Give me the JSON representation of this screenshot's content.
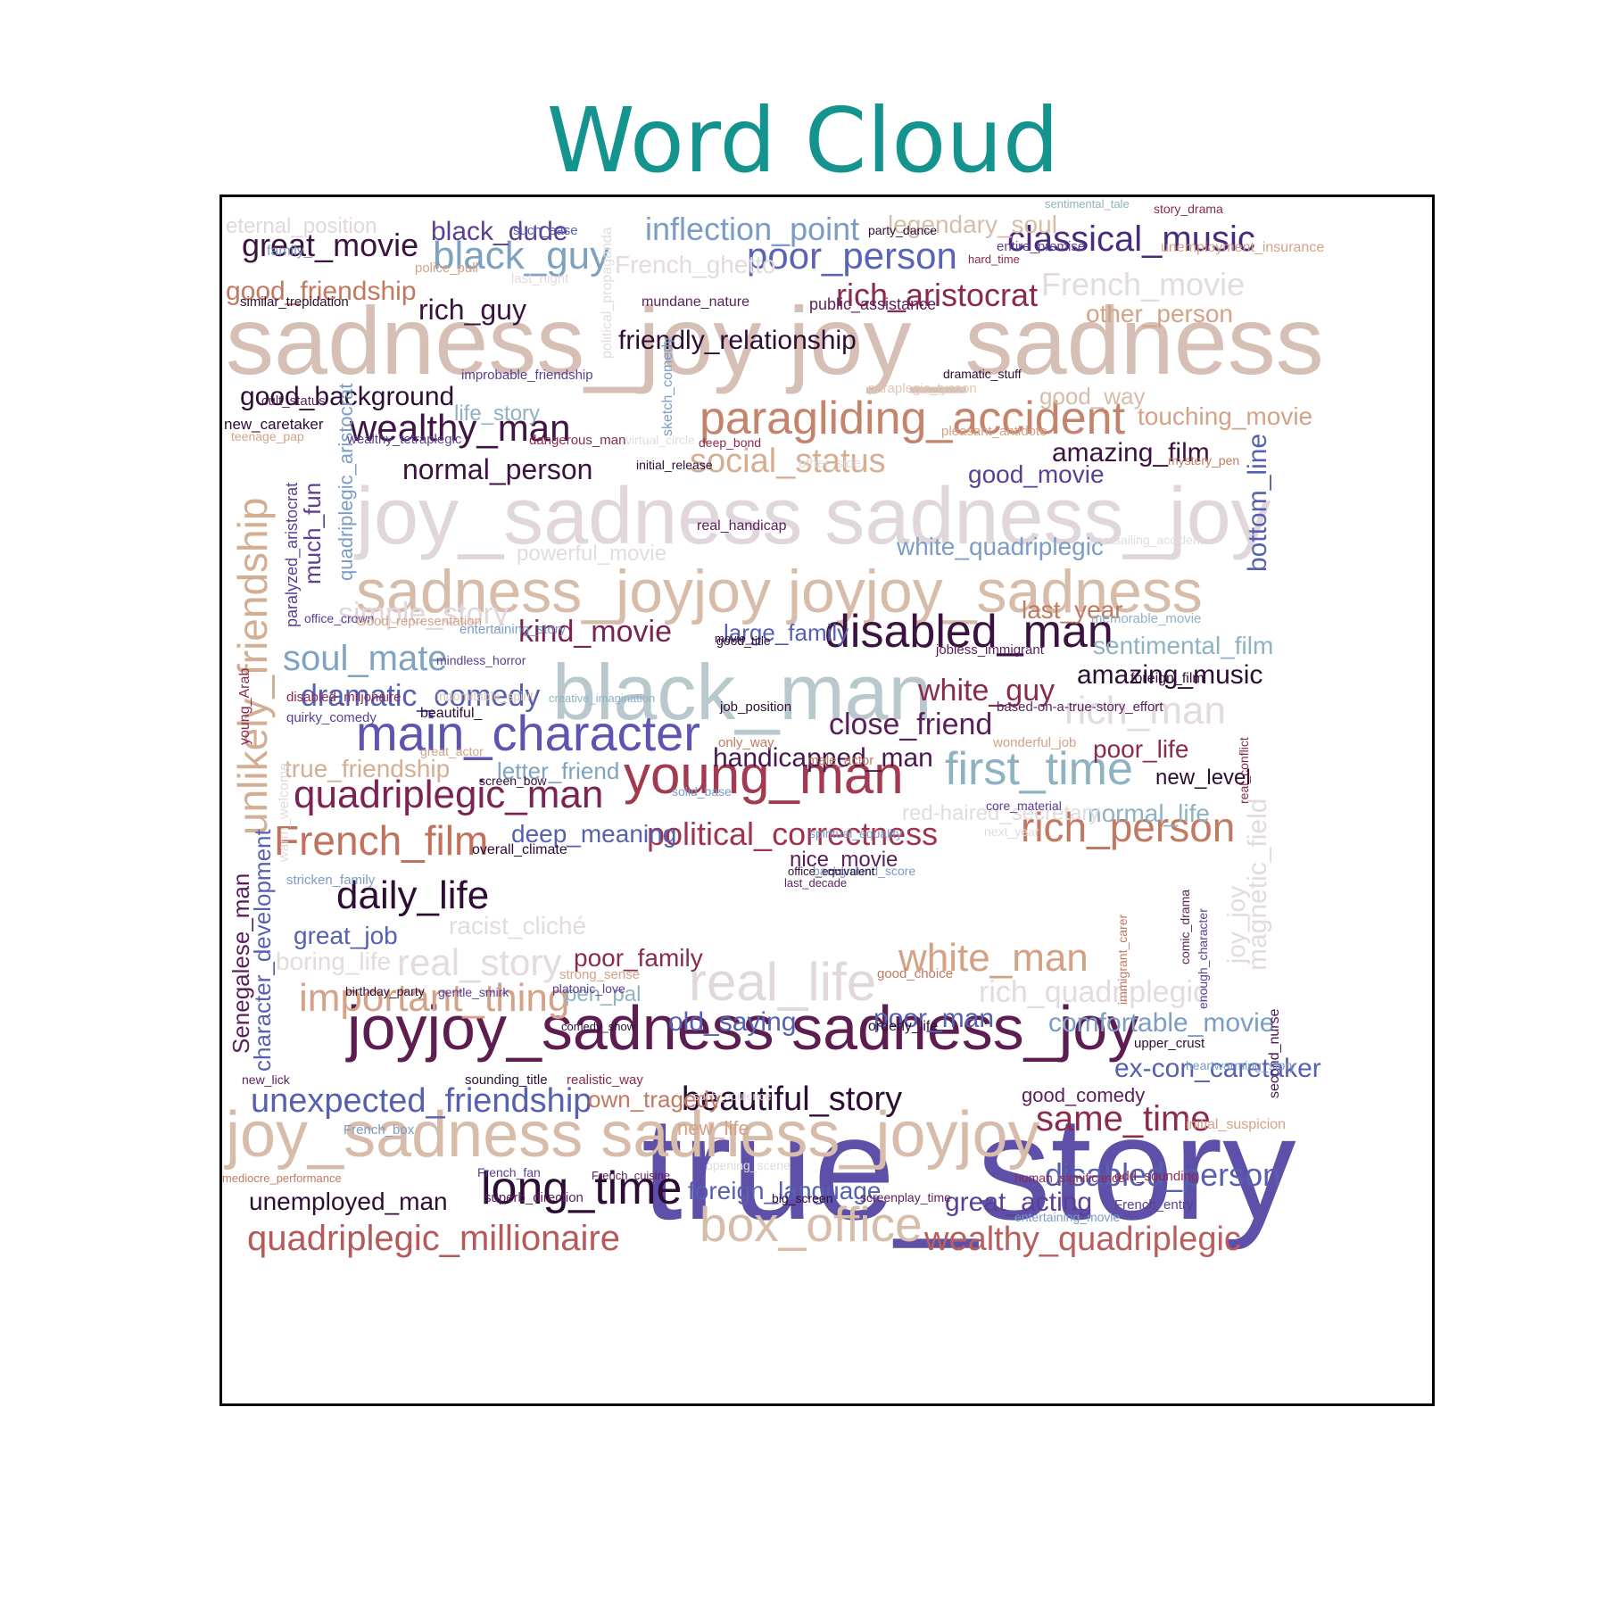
{
  "chart_data": {
    "type": "wordcloud",
    "title": "Word Cloud",
    "title_color": "#15948f",
    "words": [
      {
        "text": "true_story",
        "color": "#5e4fa9"
      },
      {
        "text": "sadness_joy joy_sadness",
        "color": "#d6bfb4"
      },
      {
        "text": "joy_sadness sadness_joy",
        "color": "#e0d6db"
      },
      {
        "text": "sadness_joyjoy joyjoy_sadness",
        "color": "#d7bca9"
      },
      {
        "text": "joyjoy_sadness sadness_joy",
        "color": "#5e1d50"
      },
      {
        "text": "joy_sadness sadness_joyjoy",
        "color": "#d6bca9"
      },
      {
        "text": "black_man",
        "color": "#b8c8cd"
      },
      {
        "text": "main_character",
        "color": "#5e55b1"
      },
      {
        "text": "young_man",
        "color": "#a33a4f"
      },
      {
        "text": "paragliding_accident",
        "color": "#c4836b"
      },
      {
        "text": "disabled_man",
        "color": "#3a1340"
      },
      {
        "text": "first_time",
        "color": "#8fb2c2"
      },
      {
        "text": "real_life",
        "color": "#e0d8dc"
      },
      {
        "text": "box_office",
        "color": "#d7bca9"
      },
      {
        "text": "long_time",
        "color": "#2c0c34"
      },
      {
        "text": "unlikely_friendship",
        "color": "#d4ae92"
      },
      {
        "text": "quadriplegic_man",
        "color": "#7b2353"
      },
      {
        "text": "French_film",
        "color": "#c1715c"
      },
      {
        "text": "rich_person",
        "color": "#c17a61"
      },
      {
        "text": "white_man",
        "color": "#d2a287"
      },
      {
        "text": "wealthy_man",
        "color": "#3f1545"
      },
      {
        "text": "quadriplegic_millionaire",
        "color": "#b45a5a"
      },
      {
        "text": "wealthy_quadriplegic",
        "color": "#b85e5c"
      },
      {
        "text": "important_thing",
        "color": "#d4a287"
      },
      {
        "text": "daily_life",
        "color": "#2e0d35"
      },
      {
        "text": "classical_music",
        "color": "#4a2a7a"
      },
      {
        "text": "poor_person",
        "color": "#5a64b4"
      },
      {
        "text": "black_guy",
        "color": "#7ca2c0"
      },
      {
        "text": "rich_aristocrat",
        "color": "#8b2a4f"
      },
      {
        "text": "great_movie",
        "color": "#3c1340"
      },
      {
        "text": "unexpected_friendship",
        "color": "#5660b0"
      },
      {
        "text": "beautiful_story",
        "color": "#2e0d35"
      },
      {
        "text": "real_story",
        "color": "#e3dbde"
      },
      {
        "text": "dramatic_comedy",
        "color": "#5660b0"
      },
      {
        "text": "soul_mate",
        "color": "#7fa3c0"
      },
      {
        "text": "political_correctness",
        "color": "#a0344f"
      },
      {
        "text": "social_status",
        "color": "#d6ae92"
      },
      {
        "text": "inflection_point",
        "color": "#7a9cc6"
      },
      {
        "text": "same_time",
        "color": "#8b2a4f"
      },
      {
        "text": "rich_man",
        "color": "#e3dbde"
      },
      {
        "text": "white_guy",
        "color": "#8b2a4f"
      },
      {
        "text": "normal_person",
        "color": "#3c1340"
      },
      {
        "text": "kind_movie",
        "color": "#7b2353"
      },
      {
        "text": "close_friend",
        "color": "#5a1f5a"
      },
      {
        "text": "handicapped_man",
        "color": "#4a1850"
      },
      {
        "text": "disabled_person",
        "color": "#5660b0"
      },
      {
        "text": "French_movie",
        "color": "#e3dbde"
      },
      {
        "text": "amazing_film",
        "color": "#3c1340"
      },
      {
        "text": "amazing_music",
        "color": "#2e0d35"
      },
      {
        "text": "good_background",
        "color": "#2e0d35"
      },
      {
        "text": "rich_guy",
        "color": "#3c1340"
      },
      {
        "text": "black_dude",
        "color": "#5a3f94"
      },
      {
        "text": "good_friendship",
        "color": "#c17a61"
      },
      {
        "text": "simple_story",
        "color": "#e0d8dc"
      },
      {
        "text": "rich_quadriplegic",
        "color": "#e3dbde"
      },
      {
        "text": "comfortable_movie",
        "color": "#7a9cc6"
      },
      {
        "text": "ex-con_caretaker",
        "color": "#5660b0"
      },
      {
        "text": "poor_man",
        "color": "#5660b0"
      },
      {
        "text": "old_saying",
        "color": "#5660b0"
      },
      {
        "text": "deep_meaning",
        "color": "#5660b0"
      },
      {
        "text": "nice_movie",
        "color": "#5a1f5a"
      },
      {
        "text": "foreign_language",
        "color": "#5660b0"
      },
      {
        "text": "great_acting",
        "color": "#5a3f94"
      },
      {
        "text": "unemployed_man",
        "color": "#2e0d35"
      },
      {
        "text": "white_quadriplegic",
        "color": "#7a9cc6"
      },
      {
        "text": "good_movie",
        "color": "#5a3f94"
      },
      {
        "text": "other_person",
        "color": "#d4a287"
      },
      {
        "text": "touching_movie",
        "color": "#d4a287"
      },
      {
        "text": "poor_life",
        "color": "#8b2a4f"
      },
      {
        "text": "normal_life",
        "color": "#8fb2c2"
      },
      {
        "text": "boring_life",
        "color": "#e3dbde"
      },
      {
        "text": "great_job",
        "color": "#5660b0"
      },
      {
        "text": "racist_cliché",
        "color": "#e3dbde"
      },
      {
        "text": "poor_family",
        "color": "#8b2a4f"
      },
      {
        "text": "true_friendship",
        "color": "#d4ae92"
      },
      {
        "text": "letter_friend",
        "color": "#7fa3c0"
      },
      {
        "text": "large_family",
        "color": "#5660b0"
      },
      {
        "text": "pen_pal",
        "color": "#8fb2c2"
      },
      {
        "text": "own_tragedy",
        "color": "#c17a61"
      },
      {
        "text": "new_life",
        "color": "#d4a287"
      },
      {
        "text": "good_comedy",
        "color": "#5a1f5a"
      },
      {
        "text": "friendly_relationship",
        "color": "#2e0d35"
      },
      {
        "text": "French_ghetto",
        "color": "#e3dbde"
      },
      {
        "text": "legendary_soul",
        "color": "#d7bca9"
      },
      {
        "text": "eternal_position",
        "color": "#e0d8dc"
      },
      {
        "text": "good_way",
        "color": "#d7bca9"
      },
      {
        "text": "last_year",
        "color": "#c17a61"
      },
      {
        "text": "sentimental_film",
        "color": "#8fb2c2"
      },
      {
        "text": "powerful_movie",
        "color": "#e3dbde"
      },
      {
        "text": "red-haired_secretary",
        "color": "#e3dbde"
      },
      {
        "text": "life_story",
        "color": "#8fb2c2"
      },
      {
        "text": "new_level",
        "color": "#2e0d35"
      },
      {
        "text": "bottom_line",
        "color": "#5660b0"
      },
      {
        "text": "magnetic_field",
        "color": "#e3dbde"
      },
      {
        "text": "joy_joy",
        "color": "#e3dbde"
      },
      {
        "text": "Senegalese_man",
        "color": "#5a1f5a"
      },
      {
        "text": "character_development",
        "color": "#5660b0"
      },
      {
        "text": "much_fun",
        "color": "#5a3f94"
      },
      {
        "text": "quadriplegic_aristocrat",
        "color": "#7a9cc6"
      },
      {
        "text": "paralyzed_aristocrat",
        "color": "#5a3f94"
      },
      {
        "text": "young_Arab",
        "color": "#8b2a4f"
      },
      {
        "text": "second_nurse",
        "color": "#4a1850"
      },
      {
        "text": "real_conflict",
        "color": "#8b2a4f"
      },
      {
        "text": "enough_character",
        "color": "#5a3f94"
      },
      {
        "text": "immigrant_carer",
        "color": "#c17a61"
      },
      {
        "text": "comic_drama",
        "color": "#5a1f5a"
      },
      {
        "text": "sketch_comedy",
        "color": "#7a9cc6"
      },
      {
        "text": "political_propaganda",
        "color": "#e3dbde"
      },
      {
        "text": "warm_welcome",
        "color": "#e3dbde"
      },
      {
        "text": "such_ease",
        "color": "#5660b0"
      },
      {
        "text": "family_",
        "color": "#7a9cc6"
      },
      {
        "text": "police_pull",
        "color": "#d4a287"
      },
      {
        "text": "last_night",
        "color": "#e3dbde"
      },
      {
        "text": "similar_trepidation",
        "color": "#2e0d35"
      },
      {
        "text": "mundane_nature",
        "color": "#5a1f5a"
      },
      {
        "text": "public_assistance",
        "color": "#5a1f5a"
      },
      {
        "text": "sentimental_tale",
        "color": "#8fb2c2"
      },
      {
        "text": "story_drama",
        "color": "#8b2a4f"
      },
      {
        "text": "party_dance",
        "color": "#2e0d35"
      },
      {
        "text": "unemployment_insurance",
        "color": "#d4a287"
      },
      {
        "text": "entire_premise",
        "color": "#5a3f94"
      },
      {
        "text": "hard_time",
        "color": "#8b2a4f"
      },
      {
        "text": "improbable_friendship",
        "color": "#5a3f94"
      },
      {
        "text": "dramatic_stuff",
        "color": "#2e0d35"
      },
      {
        "text": "paraplegic_tycoon",
        "color": "#e0c7b5"
      },
      {
        "text": "cult_status",
        "color": "#5a1f5a"
      },
      {
        "text": "new_caretaker",
        "color": "#2e0d35"
      },
      {
        "text": "teenage_pap",
        "color": "#d4a287"
      },
      {
        "text": "wealthy_tetraplegic",
        "color": "#5a3f94"
      },
      {
        "text": "dangerous_man",
        "color": "#8b2a4f"
      },
      {
        "text": "virtual_circle",
        "color": "#e3dbde"
      },
      {
        "text": "deep_bond",
        "color": "#8b2a4f"
      },
      {
        "text": "pleasant_antidote",
        "color": "#d4a287"
      },
      {
        "text": "initial_release",
        "color": "#2e0d35"
      },
      {
        "text": "other_side",
        "color": "#e3dbde"
      },
      {
        "text": "mystery_pen",
        "color": "#c17a61"
      },
      {
        "text": "real_handicap",
        "color": "#5a1f5a"
      },
      {
        "text": "parasailing_accident",
        "color": "#e3dbde"
      },
      {
        "text": "memorable_movie",
        "color": "#8fb2c2"
      },
      {
        "text": "office_crown",
        "color": "#5a3f94"
      },
      {
        "text": "Good_representation",
        "color": "#d4a287"
      },
      {
        "text": "entertaining_story",
        "color": "#7a9cc6"
      },
      {
        "text": "good_title",
        "color": "#2e0d35"
      },
      {
        "text": "movie_",
        "color": "#2e0d35"
      },
      {
        "text": "jobless_immigrant",
        "color": "#5a1f5a"
      },
      {
        "text": "foreign_film",
        "color": "#2e0d35"
      },
      {
        "text": "mindless_horror",
        "color": "#5a3f94"
      },
      {
        "text": "disabled_miljonaire",
        "color": "#8b2a4f"
      },
      {
        "text": "creative_imagination",
        "color": "#8fb2c2"
      },
      {
        "text": "indomitable_spirit",
        "color": "#e0c7b5"
      },
      {
        "text": "quirky_comedy",
        "color": "#5a3f94"
      },
      {
        "text": "job_position",
        "color": "#2e0d35"
      },
      {
        "text": "based-on-a-true-story_effort",
        "color": "#5a1f5a"
      },
      {
        "text": "beautiful_",
        "color": "#2e0d35"
      },
      {
        "text": "only_way",
        "color": "#c17a61"
      },
      {
        "text": "wonderful_job",
        "color": "#d4a287"
      },
      {
        "text": "great_actor",
        "color": "#d4a287"
      },
      {
        "text": "male_actor",
        "color": "#c17a61"
      },
      {
        "text": "screen_bow",
        "color": "#2e0d35"
      },
      {
        "text": "solid_base",
        "color": "#7a9cc6"
      },
      {
        "text": "core_material",
        "color": "#5a3f94"
      },
      {
        "text": "spiritual_equality",
        "color": "#7a9cc6"
      },
      {
        "text": "next_year",
        "color": "#e3dbde"
      },
      {
        "text": "overall_climate",
        "color": "#2e0d35"
      },
      {
        "text": "background_score",
        "color": "#7a9cc6"
      },
      {
        "text": "stricken_family",
        "color": "#7a9cc6"
      },
      {
        "text": "office_equivalent",
        "color": "#2e0d35"
      },
      {
        "text": "last_decade",
        "color": "#5a1f5a"
      },
      {
        "text": "good_choice",
        "color": "#c17a61"
      },
      {
        "text": "strong_sense",
        "color": "#d4a287"
      },
      {
        "text": "birthday_party",
        "color": "#2e0d35"
      },
      {
        "text": "gentle_smirk",
        "color": "#5a3f94"
      },
      {
        "text": "platonic_love",
        "color": "#5a3f94"
      },
      {
        "text": "comedy_show",
        "color": "#2e0d35"
      },
      {
        "text": "orderly_life",
        "color": "#2e0d35"
      },
      {
        "text": "upper_crust",
        "color": "#2e0d35"
      },
      {
        "text": "heartwarming_story",
        "color": "#7a9cc6"
      },
      {
        "text": "new_lick",
        "color": "#5a1f5a"
      },
      {
        "text": "sounding_title",
        "color": "#2e0d35"
      },
      {
        "text": "realistic_way",
        "color": "#8b2a4f"
      },
      {
        "text": "such_opulence",
        "color": "#e3dbde"
      },
      {
        "text": "initial_suspicion",
        "color": "#d4a287"
      },
      {
        "text": "odd_sounding",
        "color": "#8b2a4f"
      },
      {
        "text": "French_box",
        "color": "#7a9cc6"
      },
      {
        "text": "mediocre_performance",
        "color": "#c17a61"
      },
      {
        "text": "French_fan",
        "color": "#5a3f94"
      },
      {
        "text": "French_cuisine",
        "color": "#5a1f5a"
      },
      {
        "text": "opening_scene",
        "color": "#e3dbde"
      },
      {
        "text": "human_significance",
        "color": "#8b2a4f"
      },
      {
        "text": "superb_direction",
        "color": "#5a1f5a"
      },
      {
        "text": "big_screen",
        "color": "#2e0d35"
      },
      {
        "text": "screenplay_time",
        "color": "#5a1f5a"
      },
      {
        "text": "French_entry",
        "color": "#5a3f94"
      },
      {
        "text": "entertaining_movie",
        "color": "#7a9cc6"
      },
      {
        "text": "French_writer-director",
        "color": "#8b2a4f"
      },
      {
        "text": "non-PC_behavior",
        "color": "#c17a61"
      },
      {
        "text": "unlikely_pairing",
        "color": "#7a9cc6"
      },
      {
        "text": "funny_af",
        "color": "#8fb2c2"
      },
      {
        "text": "violent_film",
        "color": "#c17a61"
      }
    ]
  }
}
